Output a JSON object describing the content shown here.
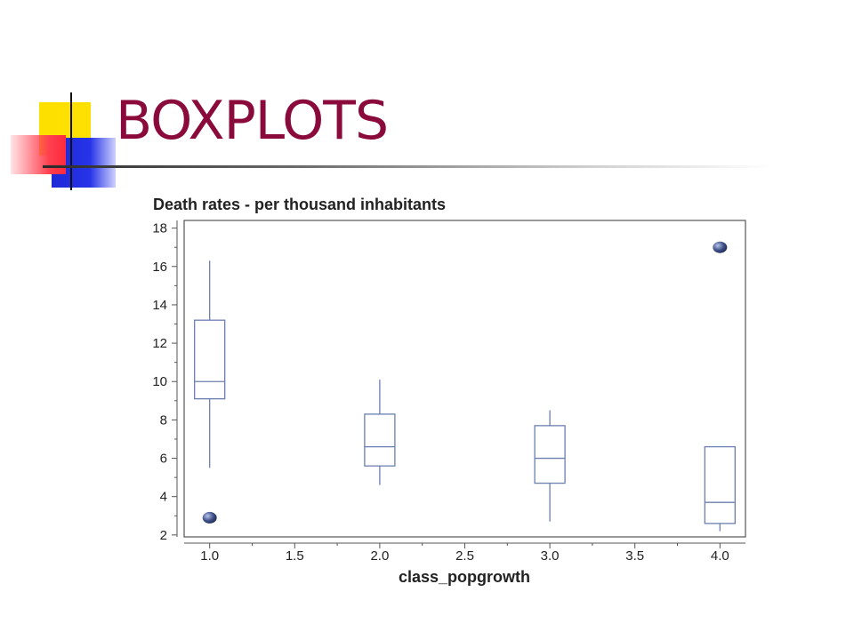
{
  "slide": {
    "title": "BOXPLOTS"
  },
  "colors": {
    "title": "#8a0a3c",
    "box": "#6b7fb0",
    "outlier": "#3e4f87"
  },
  "chart_data": {
    "type": "boxplot",
    "title": "Death rates - per thousand inhabitants",
    "xlabel": "class_popgrowth",
    "ylabel": "",
    "xlim": [
      0.85,
      4.15
    ],
    "ylim": [
      1.9,
      18.4
    ],
    "xticks": [
      1.0,
      1.5,
      2.0,
      2.5,
      3.0,
      3.5,
      4.0
    ],
    "xtick_labels": [
      "1.0",
      "1.5",
      "2.0",
      "2.5",
      "3.0",
      "3.5",
      "4.0"
    ],
    "yticks": [
      2,
      4,
      6,
      8,
      10,
      12,
      14,
      16,
      18
    ],
    "ytick_labels": [
      "2",
      "4",
      "6",
      "8",
      "10",
      "12",
      "14",
      "16",
      "18"
    ],
    "grid": false,
    "boxes": [
      {
        "x": 1.0,
        "whisker_low": 5.5,
        "q1": 9.1,
        "median": 10.0,
        "q3": 13.2,
        "whisker_high": 16.3,
        "outliers": [
          2.9
        ]
      },
      {
        "x": 2.0,
        "whisker_low": 4.6,
        "q1": 5.6,
        "median": 6.6,
        "q3": 8.3,
        "whisker_high": 10.1,
        "outliers": []
      },
      {
        "x": 3.0,
        "whisker_low": 2.7,
        "q1": 4.7,
        "median": 6.0,
        "q3": 7.7,
        "whisker_high": 8.5,
        "outliers": []
      },
      {
        "x": 4.0,
        "whisker_low": 2.2,
        "q1": 2.6,
        "median": 3.7,
        "q3": 6.6,
        "whisker_high": 6.6,
        "outliers": [
          17.0
        ]
      }
    ]
  }
}
